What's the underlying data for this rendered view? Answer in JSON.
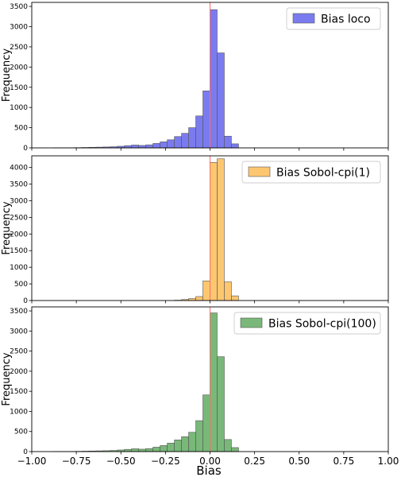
{
  "figure": {
    "xlabel": "Bias",
    "xlim": [
      -1.0,
      1.0
    ],
    "xticks": [
      -1.0,
      -0.75,
      -0.5,
      -0.25,
      0.0,
      0.25,
      0.5,
      0.75,
      1.0
    ],
    "xtick_labels": [
      "−1.00",
      "−0.75",
      "−0.50",
      "−0.25",
      "0.00",
      "0.25",
      "0.50",
      "0.75",
      "1.00"
    ],
    "reference_line_x": 0.0,
    "reference_line_color": "#ff6b6b",
    "legend_position": "top-right",
    "sharex": true
  },
  "chart_data": [
    {
      "type": "bar",
      "legend": "Bias loco",
      "ylabel": "Frequency",
      "color": "#7b7bf0",
      "ylim": [
        0,
        3600
      ],
      "yticks": [
        0,
        500,
        1000,
        1500,
        2000,
        2500,
        3000,
        3500
      ],
      "bin_width": 0.04,
      "x": [
        -0.88,
        -0.84,
        -0.8,
        -0.76,
        -0.72,
        -0.68,
        -0.64,
        -0.6,
        -0.56,
        -0.52,
        -0.48,
        -0.44,
        -0.4,
        -0.36,
        -0.32,
        -0.28,
        -0.24,
        -0.2,
        -0.16,
        -0.12,
        -0.08,
        -0.04,
        0.0,
        0.04,
        0.08,
        0.12
      ],
      "values": [
        2,
        3,
        4,
        6,
        10,
        14,
        18,
        22,
        28,
        40,
        55,
        70,
        60,
        75,
        110,
        150,
        200,
        280,
        360,
        500,
        790,
        1410,
        3420,
        2350,
        290,
        100
      ]
    },
    {
      "type": "bar",
      "legend": "Bias Sobol-cpi(1)",
      "ylabel": "Frequency",
      "color": "#fdc770",
      "ylim": [
        0,
        4350
      ],
      "yticks": [
        0,
        500,
        1000,
        1500,
        2000,
        2500,
        3000,
        3500,
        4000
      ],
      "bin_width": 0.04,
      "x": [
        -0.2,
        -0.16,
        -0.12,
        -0.08,
        -0.04,
        0.0,
        0.04,
        0.08,
        0.12
      ],
      "values": [
        10,
        30,
        60,
        120,
        590,
        4150,
        4260,
        560,
        140
      ]
    },
    {
      "type": "bar",
      "legend": "Bias Sobol-cpi(100)",
      "ylabel": "Frequency",
      "color": "#79b879",
      "ylim": [
        0,
        3600
      ],
      "yticks": [
        0,
        500,
        1000,
        1500,
        2000,
        2500,
        3000,
        3500
      ],
      "bin_width": 0.04,
      "x": [
        -0.88,
        -0.84,
        -0.8,
        -0.76,
        -0.72,
        -0.68,
        -0.64,
        -0.6,
        -0.56,
        -0.52,
        -0.48,
        -0.44,
        -0.4,
        -0.36,
        -0.32,
        -0.28,
        -0.24,
        -0.2,
        -0.16,
        -0.12,
        -0.08,
        -0.04,
        0.0,
        0.04,
        0.08,
        0.12
      ],
      "values": [
        2,
        3,
        4,
        6,
        10,
        14,
        18,
        22,
        28,
        40,
        55,
        70,
        60,
        75,
        110,
        150,
        210,
        290,
        370,
        480,
        770,
        1410,
        3450,
        2360,
        300,
        100
      ]
    }
  ]
}
